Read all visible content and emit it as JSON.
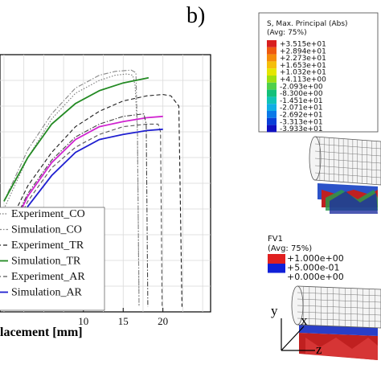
{
  "panel_label": "b)",
  "chart_data": {
    "type": "line",
    "xlabel": "lacement [mm]",
    "xlim": [
      -0.5,
      26
    ],
    "ylim": [
      0,
      10
    ],
    "x_ticks": [
      "10",
      "15",
      "20"
    ],
    "legend_position": "bottom-left",
    "grid": true,
    "series": [
      {
        "name": "Experiment_CO",
        "color": "#777777",
        "style": "dotted",
        "points": [
          [
            0,
            4.0
          ],
          [
            3,
            6.0
          ],
          [
            6,
            7.5
          ],
          [
            9,
            8.5
          ],
          [
            12,
            9.0
          ],
          [
            14,
            9.2
          ],
          [
            15.5,
            9.25
          ],
          [
            16.2,
            9.2
          ],
          [
            16.5,
            8.8
          ],
          [
            16.8,
            7.0
          ],
          [
            17.0,
            0.2
          ]
        ]
      },
      {
        "name": "Simulation_CO",
        "color": "#888888",
        "style": "dash-dot",
        "points": [
          [
            0,
            4.3
          ],
          [
            3,
            6.3
          ],
          [
            6,
            7.7
          ],
          [
            9,
            8.7
          ],
          [
            12,
            9.2
          ],
          [
            14,
            9.35
          ],
          [
            16,
            9.4
          ],
          [
            16.6,
            9.3
          ],
          [
            16.8,
            7.0
          ],
          [
            17.0,
            0.2
          ]
        ]
      },
      {
        "name": "Experiment_TR",
        "color": "#1e1e1e",
        "style": "dashed",
        "points": [
          [
            0,
            3.0
          ],
          [
            3,
            4.9
          ],
          [
            6,
            6.2
          ],
          [
            9,
            7.2
          ],
          [
            12,
            7.8
          ],
          [
            15,
            8.2
          ],
          [
            18,
            8.4
          ],
          [
            20,
            8.45
          ],
          [
            21,
            8.4
          ],
          [
            22,
            8.0
          ],
          [
            22.4,
            0.2
          ]
        ]
      },
      {
        "name": "Simulation_TR",
        "color": "#238a23",
        "style": "solid",
        "points": [
          [
            0,
            4.3
          ],
          [
            3,
            6.0
          ],
          [
            6,
            7.3
          ],
          [
            9,
            8.1
          ],
          [
            12,
            8.6
          ],
          [
            15,
            8.9
          ],
          [
            18.2,
            9.1
          ]
        ]
      },
      {
        "name": "Experiment_AR",
        "color": "#555555",
        "style": "dashed",
        "points": [
          [
            0,
            2.4
          ],
          [
            3,
            4.3
          ],
          [
            6,
            5.6
          ],
          [
            9,
            6.4
          ],
          [
            12,
            6.9
          ],
          [
            15,
            7.2
          ],
          [
            18,
            7.3
          ],
          [
            19.4,
            7.3
          ],
          [
            19.7,
            7.0
          ],
          [
            19.9,
            0.2
          ]
        ]
      },
      {
        "name": "Simulation_AR",
        "color": "#1f1fd0",
        "style": "solid",
        "points": [
          [
            0,
            2.5
          ],
          [
            3,
            4.1
          ],
          [
            6,
            5.3
          ],
          [
            9,
            6.2
          ],
          [
            12,
            6.7
          ],
          [
            15,
            6.9
          ],
          [
            18,
            7.05
          ],
          [
            20,
            7.1
          ]
        ]
      },
      {
        "name": "",
        "color": "#d023d0",
        "style": "solid",
        "points": [
          [
            0,
            2.6
          ],
          [
            3,
            4.5
          ],
          [
            6,
            5.8
          ],
          [
            9,
            6.7
          ],
          [
            12,
            7.2
          ],
          [
            15,
            7.4
          ],
          [
            18,
            7.55
          ],
          [
            20,
            7.6
          ]
        ]
      },
      {
        "name": "",
        "color": "#444444",
        "style": "dash-dot",
        "points": [
          [
            0,
            2.7
          ],
          [
            3,
            4.6
          ],
          [
            6,
            5.9
          ],
          [
            9,
            6.8
          ],
          [
            12,
            7.3
          ],
          [
            15,
            7.6
          ],
          [
            17.6,
            7.7
          ],
          [
            17.9,
            7.3
          ],
          [
            18.1,
            0.2
          ]
        ]
      }
    ]
  },
  "contour1": {
    "title_line1": "S, Max. Principal (Abs)",
    "title_line2": "(Avg: 75%)",
    "labels": [
      "+3.515e+01",
      "+2.894e+01",
      "+2.273e+01",
      "+1.653e+01",
      "+1.032e+01",
      "+4.113e+00",
      "-2.093e+00",
      "-8.300e+00",
      "-1.451e+01",
      "-2.071e+01",
      "-2.692e+01",
      "-3.313e+01",
      "-3.933e+01"
    ],
    "colors": [
      "#d81f1f",
      "#ee5a10",
      "#f58c0a",
      "#f5be0a",
      "#e5e600",
      "#9fe010",
      "#4fd04a",
      "#12c07a",
      "#10c3b7",
      "#10aee5",
      "#0a79e8",
      "#0a3fd8",
      "#1010c0"
    ]
  },
  "contour2": {
    "title_line1": "FV1",
    "title_line2": "(Avg: 75%)",
    "labels": [
      "+1.000e+00",
      "+5.000e-01",
      "+0.000e+00"
    ],
    "colors": [
      "#e02020",
      "#e02020",
      "#1020d8"
    ]
  },
  "axes_labels": {
    "y": "y",
    "x": "x",
    "z": "z"
  }
}
